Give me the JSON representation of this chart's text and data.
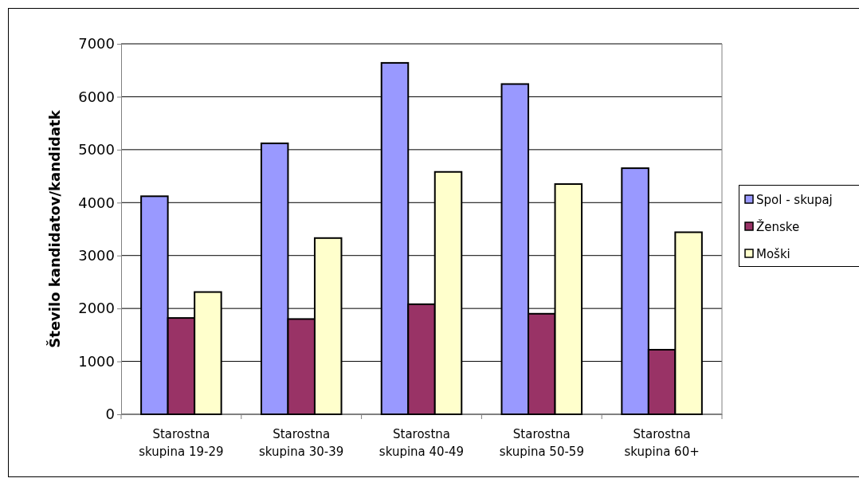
{
  "chart_data": {
    "type": "bar",
    "ylabel": "Število kandidatov/kandidatk",
    "categories": [
      "Starostna skupina 19-29",
      "Starostna skupina 30-39",
      "Starostna skupina 40-49",
      "Starostna skupina 50-59",
      "Starostna skupina 60+"
    ],
    "series": [
      {
        "name": "Spol - skupaj",
        "color": "#9999ff",
        "values": [
          4120,
          5120,
          6640,
          6240,
          4650
        ]
      },
      {
        "name": "Ženske",
        "color": "#993366",
        "values": [
          1820,
          1800,
          2080,
          1900,
          1220
        ]
      },
      {
        "name": "Moški",
        "color": "#ffffcc",
        "values": [
          2310,
          3330,
          4580,
          4350,
          3440
        ]
      }
    ],
    "ylim": [
      0,
      7000
    ],
    "yticks": [
      0,
      1000,
      2000,
      3000,
      4000,
      5000,
      6000,
      7000
    ],
    "grid": "y",
    "legend": "right"
  }
}
